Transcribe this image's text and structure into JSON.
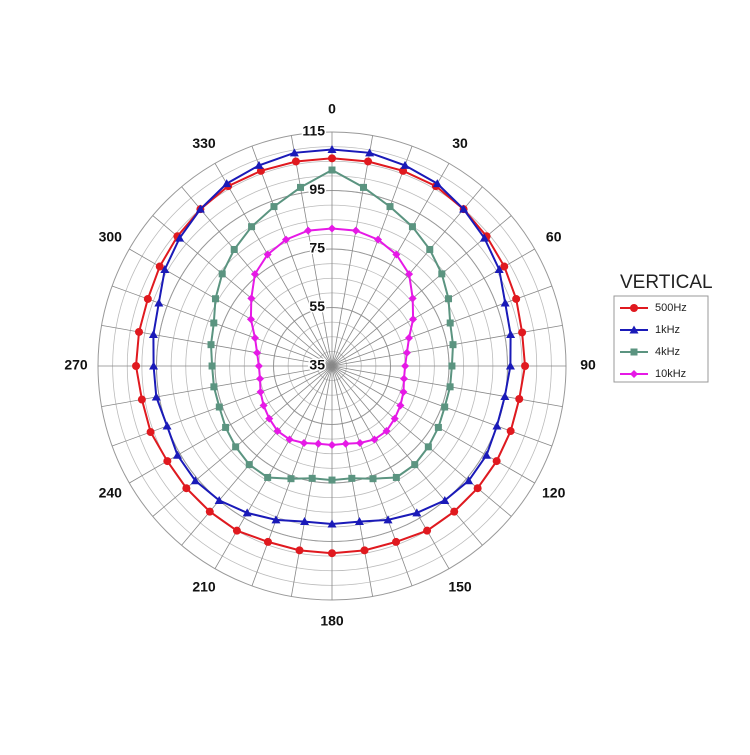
{
  "chart_data": {
    "type": "polar",
    "legend_title": "VERTICAL",
    "theta": [
      0,
      10,
      20,
      30,
      40,
      50,
      60,
      70,
      80,
      90,
      100,
      110,
      120,
      130,
      140,
      150,
      160,
      170,
      180,
      190,
      200,
      210,
      220,
      230,
      240,
      250,
      260,
      270,
      280,
      290,
      300,
      310,
      320,
      330,
      340,
      350
    ],
    "thetaticks": [
      0,
      30,
      60,
      90,
      120,
      150,
      180,
      210,
      240,
      270,
      300,
      330
    ],
    "rlim": [
      35,
      115
    ],
    "rticks": [
      35,
      55,
      75,
      95,
      115
    ],
    "grid": true,
    "legend": "right",
    "series": [
      {
        "name": "500Hz",
        "color": "#e0191f",
        "marker": "circle",
        "values": [
          106,
          106,
          106,
          106,
          105,
          104,
          103,
          102,
          101,
          101,
          100,
          100,
          100,
          100,
          100,
          100,
          99,
          99,
          99,
          99,
          99,
          100,
          100,
          100,
          100,
          101,
          101,
          102,
          102,
          102,
          103,
          104,
          105,
          106,
          106,
          106
        ]
      },
      {
        "name": "1kHz",
        "color": "#1a1ab8",
        "marker": "triangle",
        "values": [
          109,
          109,
          108,
          107,
          105,
          103,
          101,
          98,
          97,
          96,
          95,
          95,
          96,
          96,
          95,
          93,
          91,
          89,
          89,
          89,
          91,
          93,
          95,
          96,
          96,
          95,
          96,
          96,
          97,
          98,
          101,
          103,
          105,
          107,
          108,
          109
        ]
      },
      {
        "name": "4kHz",
        "color": "#5b9480",
        "marker": "square",
        "values": [
          102,
          97,
          93,
          90,
          87,
          84,
          81,
          78,
          77,
          76,
          76,
          76,
          77,
          78,
          79,
          79,
          76,
          74,
          74,
          74,
          76,
          79,
          79,
          78,
          77,
          76,
          76,
          76,
          77,
          78,
          81,
          84,
          87,
          90,
          93,
          97
        ]
      },
      {
        "name": "10kHz",
        "color": "#e619e6",
        "marker": "diamond",
        "values": [
          82,
          82,
          81,
          79,
          76,
          71,
          67,
          63,
          61,
          60,
          60,
          61,
          62,
          63,
          64,
          64,
          63,
          62,
          62,
          62,
          63,
          64,
          64,
          63,
          62,
          61,
          60,
          60,
          61,
          63,
          67,
          71,
          76,
          79,
          81,
          82
        ]
      }
    ]
  }
}
